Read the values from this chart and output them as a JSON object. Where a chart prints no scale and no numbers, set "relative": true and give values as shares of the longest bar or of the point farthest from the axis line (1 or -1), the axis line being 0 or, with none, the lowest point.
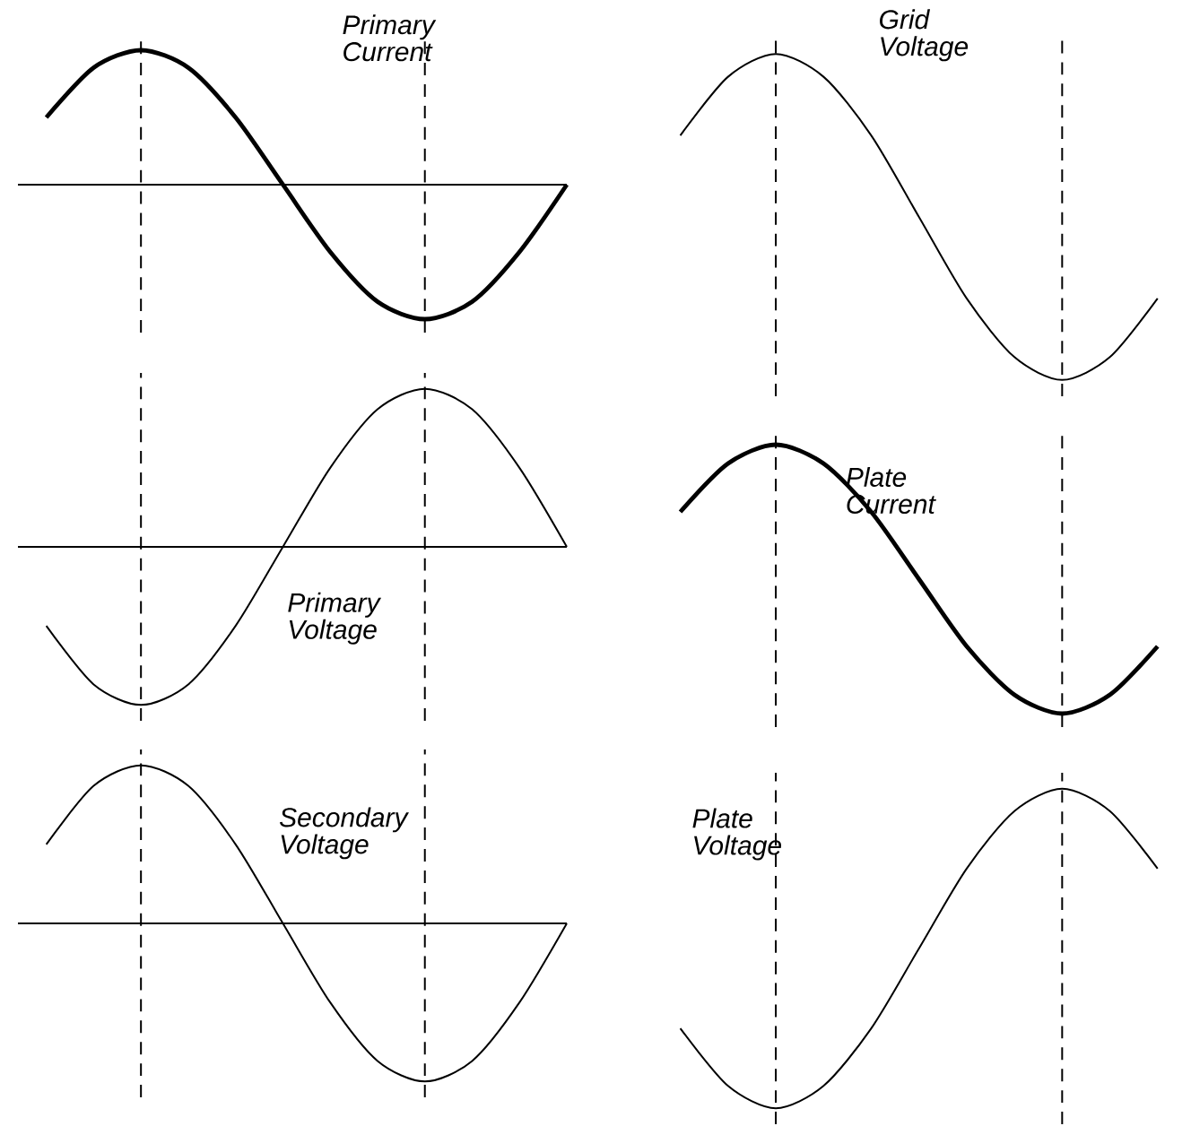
{
  "chart_data": [
    {
      "type": "line",
      "relative": true,
      "categories": [
        null,
        null,
        null,
        null,
        null,
        null,
        null,
        null,
        null,
        null,
        null,
        null
      ],
      "series": [
        {
          "color": "#000000",
          "values": [
            0.5,
            0.87,
            1,
            0.87,
            0.5,
            0,
            -0.5,
            -0.87,
            -1,
            -0.87,
            -0.5,
            0
          ]
        }
      ],
      "annotations": [
        "Primary Current"
      ]
    },
    {
      "type": "line",
      "relative": true,
      "categories": [
        null,
        null,
        null,
        null,
        null,
        null,
        null,
        null,
        null,
        null,
        null,
        null
      ],
      "series": [
        {
          "color": "#000000",
          "values": [
            -0.5,
            -0.87,
            -1,
            -0.87,
            -0.5,
            0,
            0.5,
            0.87,
            1,
            0.87,
            0.5,
            0
          ]
        }
      ],
      "annotations": [
        "Primary Voltage"
      ]
    },
    {
      "type": "line",
      "relative": true,
      "categories": [
        null,
        null,
        null,
        null,
        null,
        null,
        null,
        null,
        null,
        null,
        null,
        null
      ],
      "series": [
        {
          "color": "#000000",
          "values": [
            0.5,
            0.87,
            1,
            0.87,
            0.5,
            0,
            -0.5,
            -0.87,
            -1,
            -0.87,
            -0.5,
            0
          ]
        }
      ],
      "annotations": [
        "Secondary Voltage"
      ]
    },
    {
      "type": "line",
      "relative": true,
      "categories": [
        null,
        null,
        null,
        null,
        null,
        null,
        null,
        null,
        null,
        null,
        null
      ],
      "series": [
        {
          "color": "#000000",
          "values": [
            0.75,
            0.93,
            1,
            0.93,
            0.75,
            0.5,
            0.25,
            0.07,
            0,
            0.07,
            0.25
          ]
        }
      ],
      "annotations": [
        "Grid Voltage"
      ]
    },
    {
      "type": "line",
      "relative": true,
      "categories": [
        null,
        null,
        null,
        null,
        null,
        null,
        null,
        null,
        null,
        null,
        null
      ],
      "series": [
        {
          "color": "#000000",
          "values": [
            0.75,
            0.93,
            1,
            0.93,
            0.75,
            0.5,
            0.25,
            0.07,
            0,
            0.07,
            0.25
          ]
        }
      ],
      "annotations": [
        "Plate Current"
      ]
    },
    {
      "type": "line",
      "relative": true,
      "categories": [
        null,
        null,
        null,
        null,
        null,
        null,
        null,
        null,
        null,
        null,
        null
      ],
      "series": [
        {
          "color": "#000000",
          "values": [
            0.25,
            0.07,
            0,
            0.07,
            0.25,
            0.5,
            0.75,
            0.93,
            1,
            0.93,
            0.75
          ]
        }
      ],
      "annotations": [
        "Plate Voltage"
      ]
    }
  ]
}
